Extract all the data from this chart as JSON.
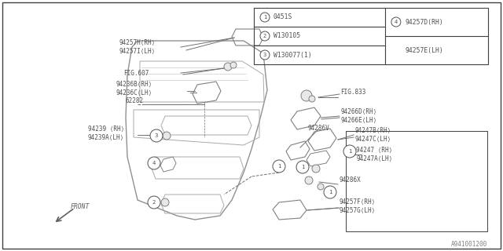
{
  "bg_color": "#ffffff",
  "border_color": "#404040",
  "line_color": "#707070",
  "text_color": "#505050",
  "diagram_id": "A941001200",
  "legend_items_left": [
    {
      "num": "1",
      "code": "0451S"
    },
    {
      "num": "2",
      "code": "W130105"
    },
    {
      "num": "3",
      "code": "W130077(1)"
    }
  ],
  "legend_item_right": {
    "num": "4",
    "code1": "94257D(RH)",
    "code2": "94257E(LH)"
  },
  "font_size_label": 5.8,
  "font_size_circle": 5.2
}
